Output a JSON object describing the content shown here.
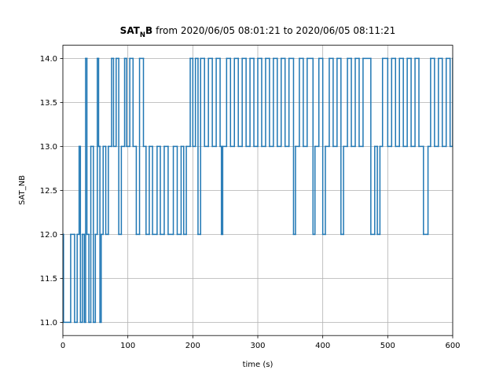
{
  "chart_data": {
    "type": "step",
    "title": {
      "parts": [
        "SAT",
        "N",
        "B",
        "from 2020/06/05 08:01:21 to 2020/06/05 08:11:21"
      ]
    },
    "xlabel": "time (s)",
    "ylabel": "SAT_NB",
    "xlim": [
      0,
      600
    ],
    "ylim": [
      10.85,
      14.15
    ],
    "xticks": [
      0,
      100,
      200,
      300,
      400,
      500,
      600
    ],
    "yticks": [
      {
        "value": 11,
        "label": "11.0"
      },
      {
        "value": 11.5,
        "label": "11.5"
      },
      {
        "value": 12,
        "label": "12.0"
      },
      {
        "value": 12.5,
        "label": "12.5"
      },
      {
        "value": 13,
        "label": "13.0"
      },
      {
        "value": 13.5,
        "label": "13.5"
      },
      {
        "value": 14,
        "label": "14.0"
      }
    ],
    "grid": true,
    "color": "#1f77b4",
    "x": [
      0,
      1,
      12,
      18,
      22,
      25,
      27,
      30,
      33,
      35,
      37,
      40,
      43,
      47,
      50,
      53,
      55,
      57,
      59,
      62,
      66,
      70,
      75,
      78,
      82,
      86,
      90,
      95,
      98,
      103,
      108,
      113,
      118,
      124,
      128,
      133,
      138,
      145,
      150,
      156,
      162,
      170,
      176,
      182,
      186,
      190,
      196,
      200,
      204,
      208,
      212,
      218,
      224,
      230,
      236,
      242,
      244,
      246,
      252,
      258,
      264,
      270,
      276,
      282,
      288,
      294,
      300,
      306,
      312,
      318,
      324,
      330,
      336,
      342,
      348,
      355,
      358,
      364,
      370,
      376,
      385,
      388,
      394,
      400,
      404,
      410,
      416,
      422,
      428,
      432,
      438,
      444,
      450,
      456,
      462,
      474,
      480,
      484,
      488,
      492,
      500,
      506,
      512,
      518,
      524,
      530,
      536,
      542,
      548,
      555,
      562,
      566,
      572,
      578,
      584,
      590,
      596,
      600
    ],
    "values": [
      12,
      11,
      12,
      11,
      12,
      13,
      11,
      12,
      11,
      14,
      12,
      11,
      13,
      11,
      12,
      14,
      13,
      11,
      12,
      13,
      12,
      13,
      14,
      13,
      14,
      12,
      13,
      14,
      13,
      14,
      13,
      12,
      14,
      13,
      12,
      13,
      12,
      13,
      12,
      13,
      12,
      13,
      12,
      13,
      12,
      13,
      14,
      13,
      14,
      12,
      14,
      13,
      14,
      13,
      14,
      13,
      12,
      13,
      14,
      13,
      14,
      13,
      14,
      13,
      14,
      13,
      14,
      13,
      14,
      13,
      14,
      13,
      14,
      13,
      14,
      12,
      13,
      14,
      13,
      14,
      12,
      13,
      14,
      12,
      13,
      14,
      13,
      14,
      12,
      13,
      14,
      13,
      14,
      13,
      14,
      12,
      13,
      12,
      13,
      14,
      13,
      14,
      13,
      14,
      13,
      14,
      13,
      14,
      13,
      12,
      13,
      14,
      13,
      14,
      13,
      14,
      13,
      14
    ]
  }
}
